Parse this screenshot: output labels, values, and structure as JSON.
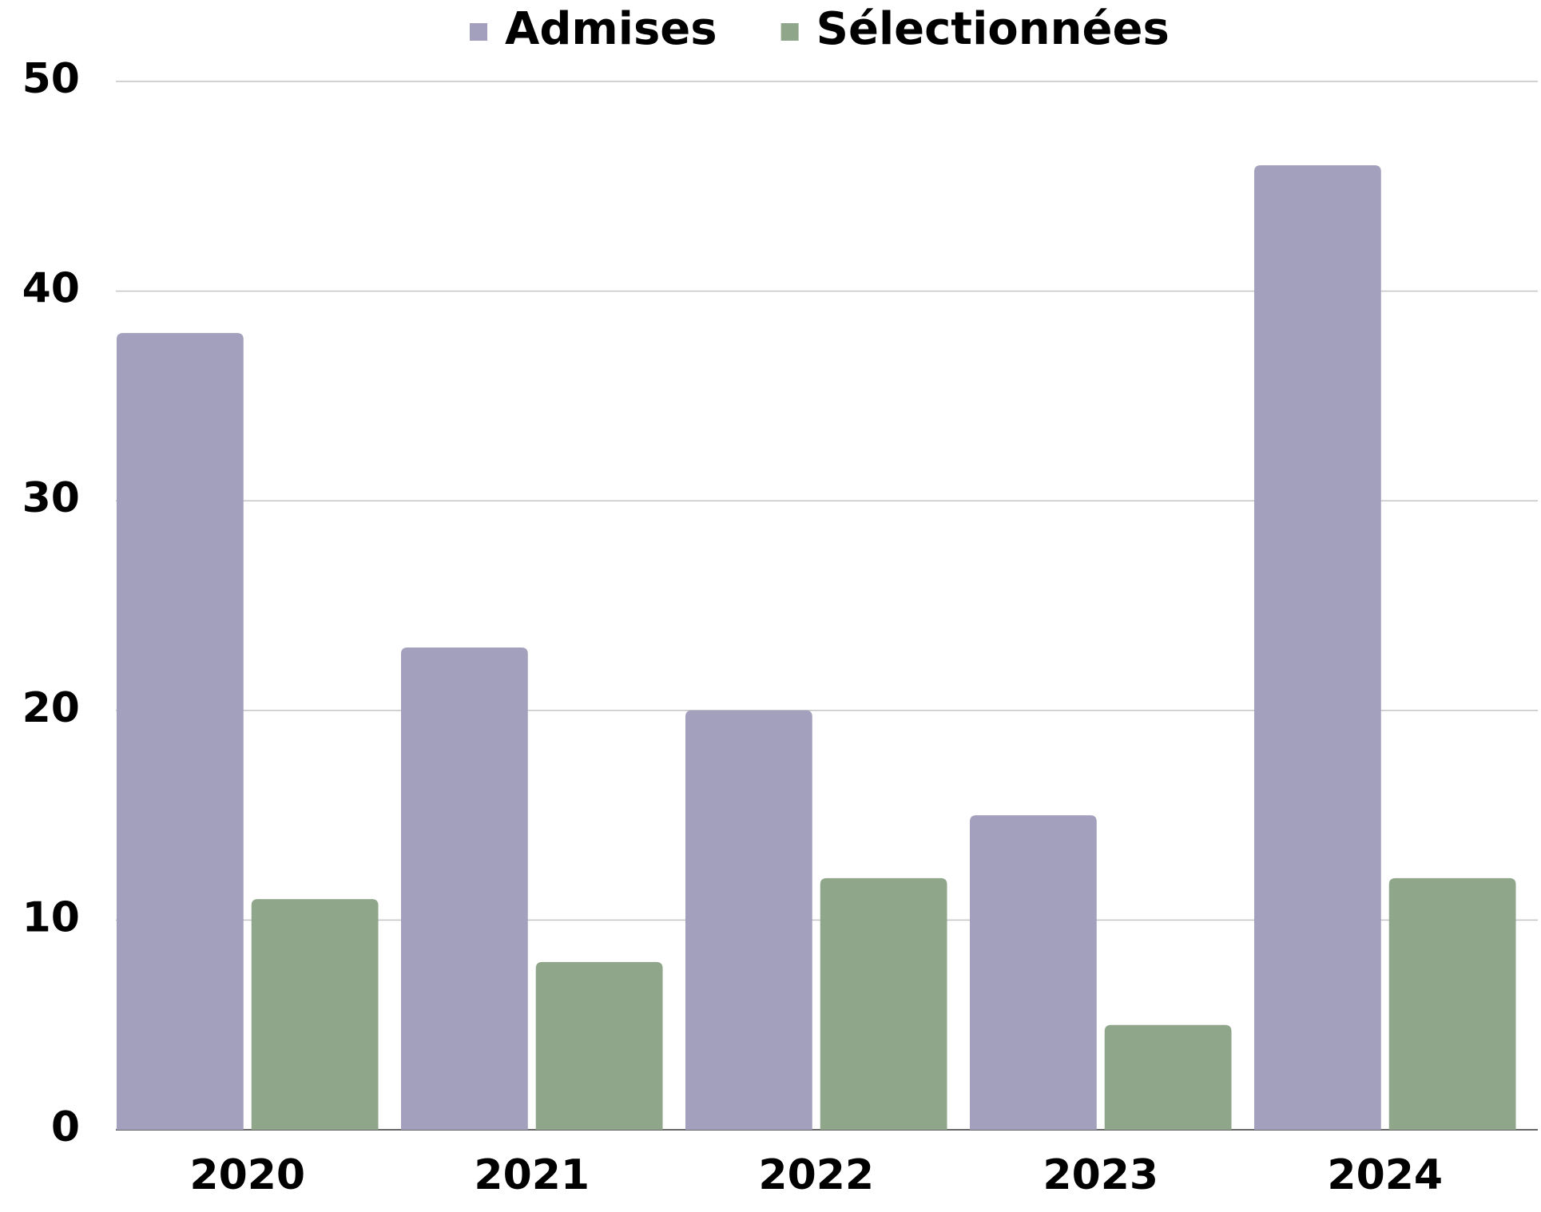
{
  "chart_data": {
    "type": "bar",
    "categories": [
      "2020",
      "2021",
      "2022",
      "2023",
      "2024"
    ],
    "series": [
      {
        "name": "Admises",
        "color": "#a3a0bd",
        "values": [
          38,
          23,
          20,
          15,
          46
        ]
      },
      {
        "name": "Sélectionnées",
        "color": "#8fa68a",
        "values": [
          11,
          8,
          12,
          5,
          12
        ]
      }
    ],
    "ylim": [
      0,
      50
    ],
    "yticks": [
      0,
      10,
      20,
      30,
      40,
      50
    ],
    "grid": true,
    "legend": "top"
  }
}
